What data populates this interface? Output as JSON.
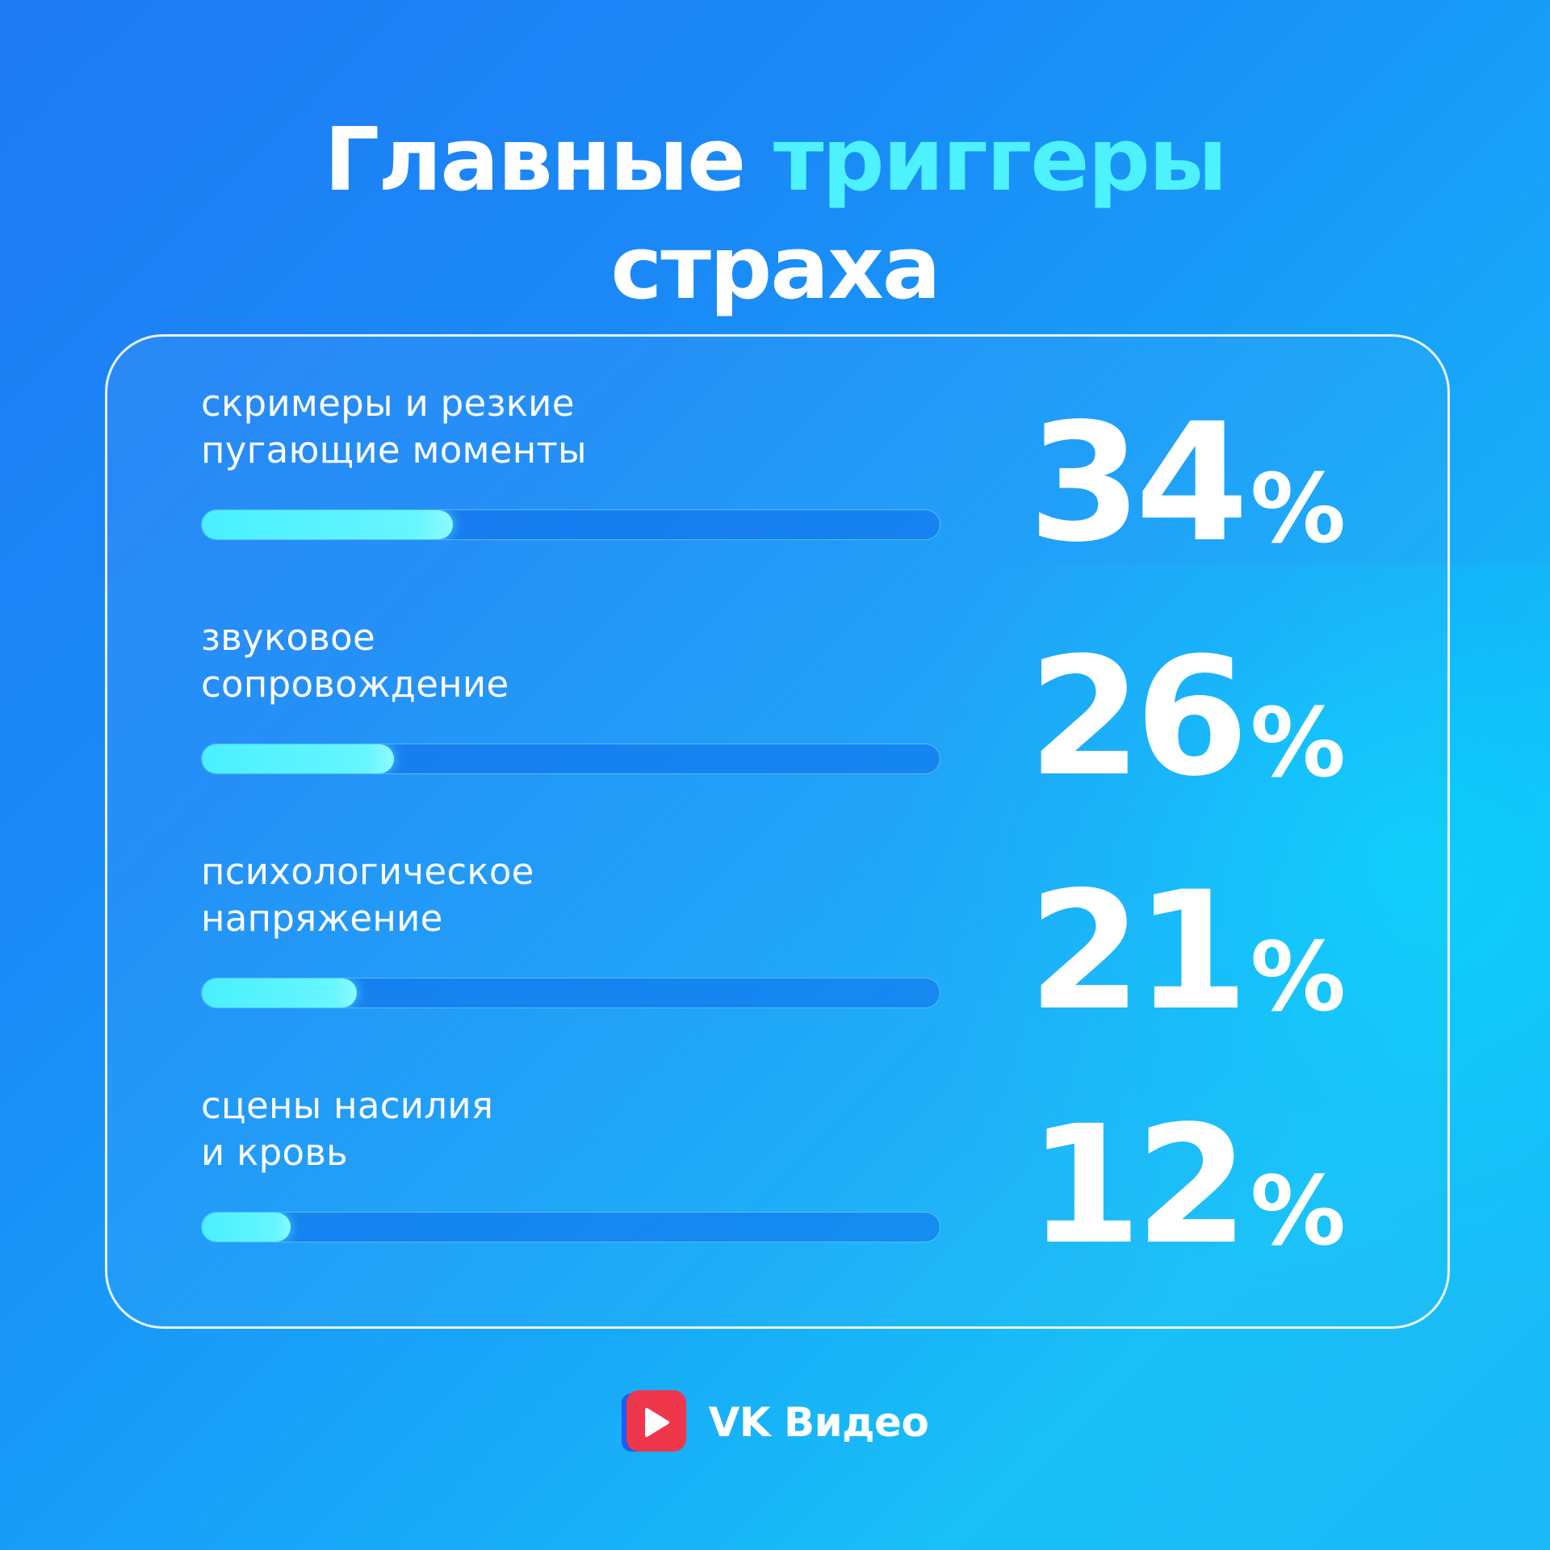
{
  "title": {
    "part1": "Главные",
    "accent": "триггеры",
    "part2": "страха"
  },
  "brand": {
    "name": "VK Видео",
    "logo_icon": "vk-video-play-icon",
    "logo_color": "#f0364b"
  },
  "colors": {
    "accent": "#4ef2ff",
    "background_start": "#1f7bf3",
    "background_end": "#19bff7",
    "bar_track": "#0c6eeb",
    "bar_fill": "#49f0ff"
  },
  "chart_data": {
    "type": "bar",
    "orientation": "horizontal",
    "unit": "%",
    "xlim": [
      0,
      100
    ],
    "categories": [
      "скримеры и резкие\nпугающие моменты",
      "звуковое\nсопровождение",
      "психологическое\nнапряжение",
      "сцены насилия\nи кровь"
    ],
    "values": [
      34,
      26,
      21,
      12
    ],
    "rows": [
      {
        "label": "скримеры и резкие\nпугающие моменты",
        "value": 34,
        "value_text": "34",
        "unit": "%"
      },
      {
        "label": "звуковое\nсопровождение",
        "value": 26,
        "value_text": "26",
        "unit": "%"
      },
      {
        "label": "психологическое\nнапряжение",
        "value": 21,
        "value_text": "21",
        "unit": "%"
      },
      {
        "label": "сцены насилия\nи кровь",
        "value": 12,
        "value_text": "12",
        "unit": "%"
      }
    ]
  }
}
